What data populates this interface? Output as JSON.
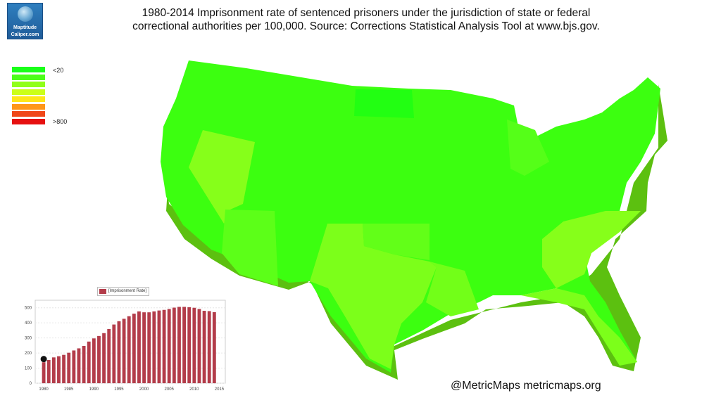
{
  "logo": {
    "line1": "Maptitude",
    "line2": "Caliper.com"
  },
  "title": {
    "line1": "1980-2014 Imprisonment rate of sentenced prisoners under the jurisdiction of state or federal",
    "line2": "correctional authorities per 100,000. Source: Corrections Statistical Analysis Tool at www.bjs.gov."
  },
  "legend": {
    "swatches": [
      "#19ff19",
      "#4cff19",
      "#90ff19",
      "#ccff19",
      "#ffe619",
      "#ff9619",
      "#f04719",
      "#e61010"
    ],
    "top_label": "<20",
    "bottom_label": ">800"
  },
  "credit": "@MetricMaps metricmaps.org",
  "map": {
    "colors": {
      "dark_green": "#22ff10",
      "green": "#3cff10",
      "yellow_green": "#7cff1a",
      "light_yellow_green": "#90ff20",
      "extrusion": "#5cc010"
    }
  },
  "chart_data": {
    "type": "bar",
    "legend": [
      "[Imprisonment Rate]"
    ],
    "series_color": "#b33c4a",
    "x": [
      1980,
      1981,
      1982,
      1983,
      1984,
      1985,
      1986,
      1987,
      1988,
      1989,
      1990,
      1991,
      1992,
      1993,
      1994,
      1995,
      1996,
      1997,
      1998,
      1999,
      2000,
      2001,
      2002,
      2003,
      2004,
      2005,
      2006,
      2007,
      2008,
      2009,
      2010,
      2011,
      2012,
      2013,
      2014
    ],
    "series": [
      {
        "name": "[Imprisonment Rate]",
        "values": [
          139,
          154,
          171,
          179,
          188,
          202,
          217,
          231,
          247,
          276,
          297,
          313,
          332,
          359,
          389,
          411,
          427,
          444,
          461,
          476,
          470,
          470,
          476,
          482,
          486,
          492,
          501,
          506,
          506,
          504,
          500,
          492,
          480,
          478,
          471
        ]
      }
    ],
    "xticks": [
      "1980",
      "1985",
      "1990",
      "1995",
      "2000",
      "2005",
      "2010",
      "2015"
    ],
    "yticks": [
      "0",
      "100",
      "200",
      "300",
      "400",
      "500"
    ],
    "ylim": [
      0,
      550
    ],
    "grid": true,
    "marker": {
      "year": 1980,
      "value": 160,
      "shape": "black-dot"
    }
  }
}
